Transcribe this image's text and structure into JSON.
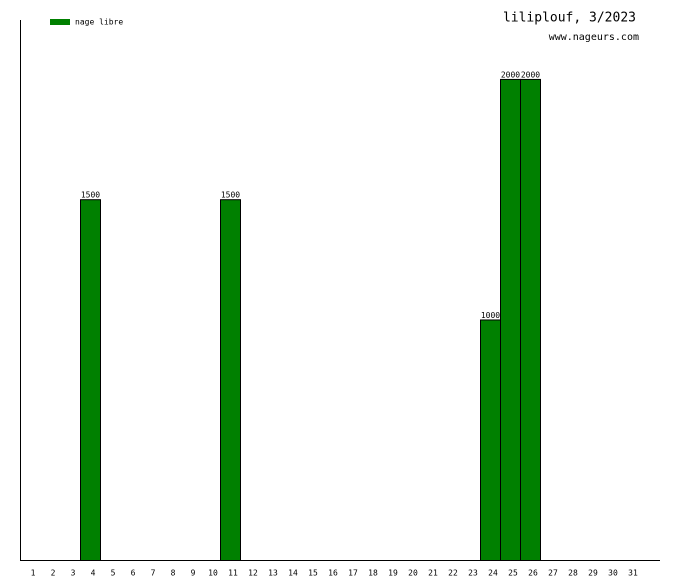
{
  "chart_data": {
    "type": "bar",
    "title": "liliplouf, 3/2023",
    "subtitle": "www.nageurs.com",
    "categories": [
      "1",
      "2",
      "3",
      "4",
      "5",
      "6",
      "7",
      "8",
      "9",
      "10",
      "11",
      "12",
      "13",
      "14",
      "15",
      "16",
      "17",
      "18",
      "19",
      "20",
      "21",
      "22",
      "23",
      "24",
      "25",
      "26",
      "27",
      "28",
      "29",
      "30",
      "31"
    ],
    "series": [
      {
        "name": "nage libre",
        "color": "#008000",
        "values": [
          null,
          null,
          null,
          1500,
          null,
          null,
          null,
          null,
          null,
          null,
          1500,
          null,
          null,
          null,
          null,
          null,
          null,
          null,
          null,
          null,
          null,
          null,
          null,
          1000,
          2000,
          2000,
          null,
          null,
          null,
          null,
          null
        ]
      }
    ],
    "ylim": [
      0,
      2245
    ],
    "legend": "top-left"
  }
}
